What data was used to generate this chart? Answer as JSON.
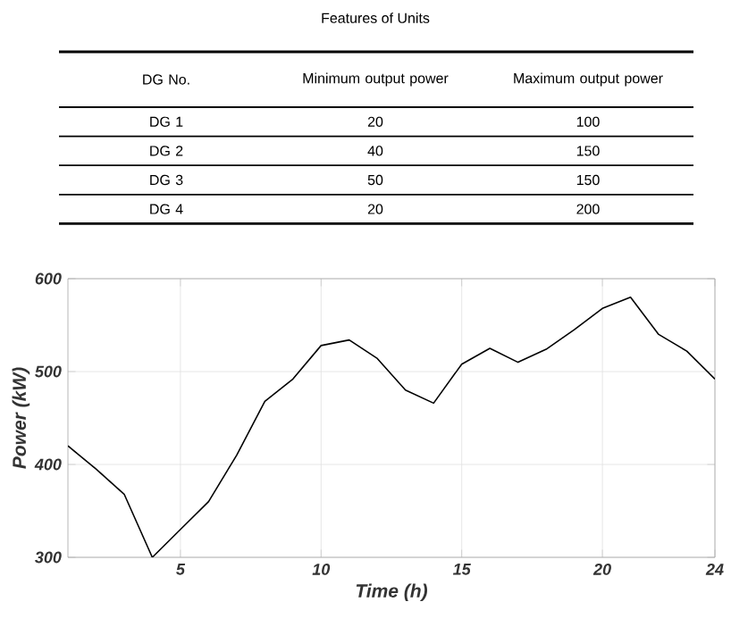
{
  "chart_data": [
    {
      "type": "other",
      "title": "Features of Units",
      "annotations": [
        "DG No.",
        "Minimum output power",
        "Maximum output power",
        "DG 1",
        "20",
        "100",
        "DG 2",
        "40",
        "150",
        "DG 3",
        "50",
        "150",
        "DG 4",
        "20",
        "200"
      ]
    },
    {
      "type": "line",
      "xlabel": "Time (h)",
      "ylabel": "Power (kW)",
      "x": [
        1,
        2,
        3,
        4,
        5,
        6,
        7,
        8,
        9,
        10,
        11,
        12,
        13,
        14,
        15,
        16,
        17,
        18,
        19,
        20,
        21,
        22,
        23,
        24
      ],
      "series": [
        {
          "color": "#000000",
          "values": [
            420,
            395,
            368,
            300,
            330,
            360,
            410,
            468,
            492,
            528,
            534,
            514,
            480,
            466,
            508,
            525,
            510,
            524,
            545,
            568,
            580,
            540,
            522,
            492
          ]
        }
      ],
      "xlim": [
        1,
        24
      ],
      "ylim": [
        300,
        600
      ],
      "xticks": [
        5,
        10,
        15,
        20,
        24
      ],
      "yticks": [
        300,
        400,
        500,
        600
      ],
      "grid": true,
      "marker": "none",
      "line_style": "solid"
    }
  ]
}
